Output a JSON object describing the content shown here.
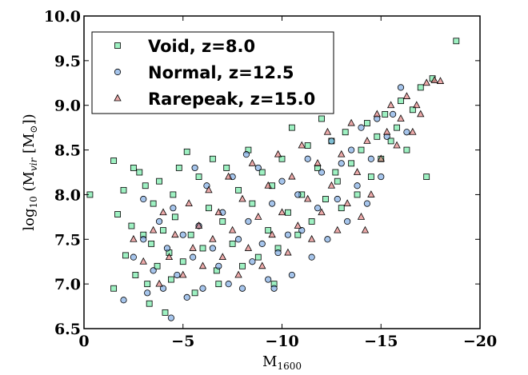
{
  "chart_data": {
    "type": "scatter",
    "title": "",
    "xlabel": "M",
    "xlabel_sub": "1600",
    "ylabel": "log",
    "ylabel_sub": "10",
    "ylabel_rest": " (M",
    "ylabel_sub2": "vir",
    "ylabel_rest2": " [M",
    "ylabel_sub3": "⊙",
    "ylabel_end": "])",
    "xlim": [
      0,
      -20
    ],
    "ylim": [
      6.5,
      10.0
    ],
    "x_ticks": [
      0,
      -5,
      -10,
      -15,
      -20
    ],
    "x_tick_labels": [
      "0",
      "−5",
      "−10",
      "−15",
      "−20"
    ],
    "y_ticks": [
      6.5,
      7.0,
      7.5,
      8.0,
      8.5,
      9.0,
      9.5,
      10.0
    ],
    "y_tick_labels": [
      "6.5",
      "7.0",
      "7.5",
      "8.0",
      "8.5",
      "9.0",
      "9.5",
      "10.0"
    ],
    "grid": false,
    "legend_position": "top-left",
    "series": [
      {
        "name": "Void, z=8.0",
        "marker": "square",
        "color": "#5de89a",
        "points": [
          [
            -0.3,
            8.0
          ],
          [
            -1.5,
            8.38
          ],
          [
            -1.5,
            6.95
          ],
          [
            -1.7,
            7.78
          ],
          [
            -2.0,
            8.05
          ],
          [
            -2.1,
            7.32
          ],
          [
            -2.4,
            7.65
          ],
          [
            -2.5,
            8.3
          ],
          [
            -2.6,
            7.1
          ],
          [
            -2.8,
            8.25
          ],
          [
            -3.0,
            7.55
          ],
          [
            -3.1,
            8.1
          ],
          [
            -3.2,
            7.0
          ],
          [
            -3.3,
            6.78
          ],
          [
            -3.4,
            7.45
          ],
          [
            -3.5,
            7.9
          ],
          [
            -3.7,
            7.2
          ],
          [
            -3.8,
            8.15
          ],
          [
            -4.0,
            7.6
          ],
          [
            -4.1,
            6.68
          ],
          [
            -4.3,
            7.35
          ],
          [
            -4.5,
            8.0
          ],
          [
            -4.6,
            7.75
          ],
          [
            -4.8,
            8.3
          ],
          [
            -5.0,
            7.25
          ],
          [
            -5.2,
            8.48
          ],
          [
            -5.4,
            7.55
          ],
          [
            -5.6,
            6.9
          ],
          [
            -5.8,
            8.2
          ],
          [
            -6.0,
            7.4
          ],
          [
            -6.3,
            7.85
          ],
          [
            -6.5,
            8.4
          ],
          [
            -6.7,
            7.15
          ],
          [
            -7.0,
            7.7
          ],
          [
            -7.2,
            8.3
          ],
          [
            -7.5,
            7.45
          ],
          [
            -7.8,
            8.05
          ],
          [
            -8.0,
            7.2
          ],
          [
            -8.3,
            8.5
          ],
          [
            -8.5,
            7.9
          ],
          [
            -8.8,
            7.3
          ],
          [
            -9.0,
            8.25
          ],
          [
            -9.3,
            7.6
          ],
          [
            -9.5,
            8.1
          ],
          [
            -9.8,
            7.4
          ],
          [
            -10.0,
            8.4
          ],
          [
            -10.3,
            7.8
          ],
          [
            -10.5,
            8.75
          ],
          [
            -10.8,
            7.55
          ],
          [
            -11.0,
            8.0
          ],
          [
            -11.3,
            8.55
          ],
          [
            -11.5,
            7.7
          ],
          [
            -11.8,
            8.3
          ],
          [
            -12.0,
            8.85
          ],
          [
            -12.2,
            7.95
          ],
          [
            -12.5,
            8.6
          ],
          [
            -12.8,
            8.15
          ],
          [
            -13.0,
            7.85
          ],
          [
            -13.2,
            8.7
          ],
          [
            -13.5,
            8.35
          ],
          [
            -13.8,
            8.0
          ],
          [
            -14.0,
            8.5
          ],
          [
            -14.3,
            8.8
          ],
          [
            -14.5,
            8.2
          ],
          [
            -14.8,
            8.65
          ],
          [
            -15.0,
            8.4
          ],
          [
            -15.2,
            8.9
          ],
          [
            -15.5,
            8.6
          ],
          [
            -15.8,
            8.75
          ],
          [
            -16.0,
            9.05
          ],
          [
            -16.3,
            8.5
          ],
          [
            -16.6,
            8.95
          ],
          [
            -17.0,
            9.2
          ],
          [
            -17.3,
            8.2
          ],
          [
            -17.6,
            9.3
          ],
          [
            -18.8,
            9.72
          ],
          [
            -12.7,
            8.25
          ],
          [
            -9.6,
            7.0
          ],
          [
            -6.8,
            7.0
          ],
          [
            -4.4,
            7.05
          ]
        ]
      },
      {
        "name": "Normal, z=12.5",
        "marker": "circle",
        "color": "#6a9fe0",
        "points": [
          [
            -2.0,
            6.82
          ],
          [
            -2.5,
            7.3
          ],
          [
            -3.0,
            7.5
          ],
          [
            -3.2,
            6.9
          ],
          [
            -3.5,
            7.15
          ],
          [
            -3.8,
            7.7
          ],
          [
            -4.0,
            6.95
          ],
          [
            -4.2,
            7.4
          ],
          [
            -4.4,
            6.62
          ],
          [
            -4.5,
            7.85
          ],
          [
            -4.7,
            7.1
          ],
          [
            -5.0,
            7.55
          ],
          [
            -5.2,
            6.85
          ],
          [
            -5.5,
            7.3
          ],
          [
            -5.8,
            7.65
          ],
          [
            -6.0,
            6.95
          ],
          [
            -6.2,
            8.1
          ],
          [
            -6.5,
            7.4
          ],
          [
            -6.8,
            7.2
          ],
          [
            -7.0,
            7.8
          ],
          [
            -7.3,
            7.0
          ],
          [
            -7.5,
            8.2
          ],
          [
            -7.8,
            7.5
          ],
          [
            -8.0,
            6.95
          ],
          [
            -8.3,
            7.7
          ],
          [
            -8.5,
            7.25
          ],
          [
            -8.8,
            8.3
          ],
          [
            -9.0,
            7.45
          ],
          [
            -9.3,
            7.05
          ],
          [
            -9.5,
            7.9
          ],
          [
            -9.8,
            7.35
          ],
          [
            -10.0,
            8.15
          ],
          [
            -10.3,
            7.55
          ],
          [
            -10.5,
            7.1
          ],
          [
            -10.8,
            8.0
          ],
          [
            -11.0,
            7.6
          ],
          [
            -11.3,
            8.4
          ],
          [
            -11.5,
            7.3
          ],
          [
            -11.8,
            7.85
          ],
          [
            -12.0,
            8.25
          ],
          [
            -12.3,
            7.5
          ],
          [
            -12.5,
            8.6
          ],
          [
            -12.8,
            7.95
          ],
          [
            -13.0,
            8.35
          ],
          [
            -13.3,
            7.7
          ],
          [
            -13.5,
            8.5
          ],
          [
            -13.8,
            8.1
          ],
          [
            -14.0,
            8.75
          ],
          [
            -14.3,
            7.9
          ],
          [
            -14.5,
            8.4
          ],
          [
            -14.8,
            8.85
          ],
          [
            -15.0,
            8.2
          ],
          [
            -15.3,
            8.65
          ],
          [
            -15.6,
            8.9
          ],
          [
            -16.0,
            9.2
          ],
          [
            -16.3,
            8.7
          ],
          [
            -3.0,
            7.95
          ],
          [
            -5.6,
            8.3
          ],
          [
            -8.2,
            8.45
          ],
          [
            -9.6,
            6.95
          ]
        ]
      },
      {
        "name": "Rarepeak, z=15.0",
        "marker": "triangle",
        "color": "#e07070",
        "points": [
          [
            -2.5,
            7.5
          ],
          [
            -3.0,
            7.25
          ],
          [
            -3.5,
            7.6
          ],
          [
            -3.8,
            7.0
          ],
          [
            -4.0,
            7.8
          ],
          [
            -4.3,
            7.3
          ],
          [
            -4.6,
            7.55
          ],
          [
            -5.0,
            7.1
          ],
          [
            -5.3,
            7.9
          ],
          [
            -5.5,
            7.4
          ],
          [
            -5.8,
            7.65
          ],
          [
            -6.0,
            7.2
          ],
          [
            -6.3,
            8.05
          ],
          [
            -6.5,
            7.5
          ],
          [
            -6.8,
            7.8
          ],
          [
            -7.0,
            7.3
          ],
          [
            -7.3,
            8.2
          ],
          [
            -7.5,
            7.6
          ],
          [
            -7.8,
            7.1
          ],
          [
            -8.0,
            7.95
          ],
          [
            -8.3,
            7.4
          ],
          [
            -8.5,
            8.35
          ],
          [
            -8.8,
            7.75
          ],
          [
            -9.0,
            7.2
          ],
          [
            -9.3,
            8.1
          ],
          [
            -9.5,
            7.55
          ],
          [
            -9.8,
            8.45
          ],
          [
            -10.0,
            7.8
          ],
          [
            -10.3,
            7.35
          ],
          [
            -10.5,
            8.2
          ],
          [
            -10.8,
            7.65
          ],
          [
            -11.0,
            8.55
          ],
          [
            -11.3,
            7.95
          ],
          [
            -11.5,
            7.5
          ],
          [
            -11.8,
            8.35
          ],
          [
            -12.0,
            7.8
          ],
          [
            -12.3,
            8.7
          ],
          [
            -12.5,
            8.1
          ],
          [
            -12.8,
            7.6
          ],
          [
            -13.0,
            8.45
          ],
          [
            -13.3,
            7.9
          ],
          [
            -13.5,
            8.8
          ],
          [
            -13.8,
            8.25
          ],
          [
            -14.0,
            7.75
          ],
          [
            -14.3,
            8.6
          ],
          [
            -14.5,
            8.0
          ],
          [
            -14.8,
            8.9
          ],
          [
            -15.0,
            8.4
          ],
          [
            -15.3,
            8.7
          ],
          [
            -15.5,
            9.0
          ],
          [
            -15.8,
            8.55
          ],
          [
            -16.0,
            8.85
          ],
          [
            -16.3,
            9.1
          ],
          [
            -16.6,
            8.7
          ],
          [
            -17.0,
            8.9
          ],
          [
            -17.3,
            9.25
          ],
          [
            -17.7,
            9.28
          ],
          [
            -18.0,
            9.27
          ],
          [
            -16.8,
            9.0
          ],
          [
            -14.2,
            7.6
          ]
        ]
      }
    ]
  },
  "legend": {
    "items": [
      "Void, z=8.0",
      "Normal, z=12.5",
      "Rarepeak, z=15.0"
    ]
  }
}
